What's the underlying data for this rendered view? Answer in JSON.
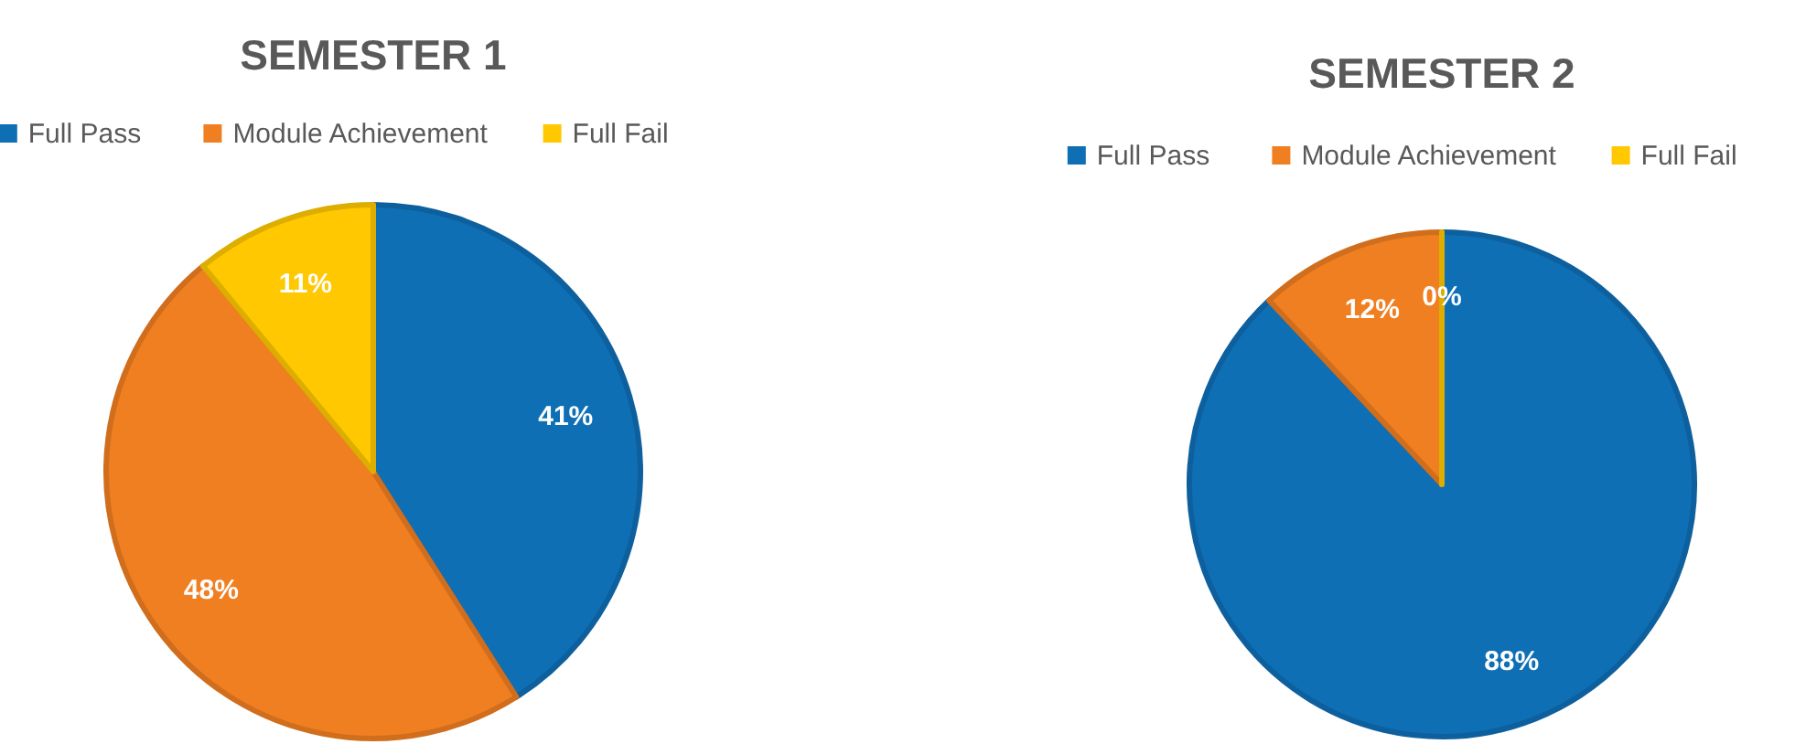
{
  "chart_data": [
    {
      "type": "pie",
      "title": "SEMESTER 1",
      "categories": [
        "Full Pass",
        "Module Achievement",
        "Full Fail"
      ],
      "values": [
        41,
        48,
        11
      ],
      "colors": [
        "#0f6fb5",
        "#f07f22",
        "#ffc800"
      ],
      "value_labels": [
        "41%",
        "48%",
        "11%"
      ],
      "legend": "top"
    },
    {
      "type": "pie",
      "title": "SEMESTER 2",
      "categories": [
        "Full Pass",
        "Module Achievement",
        "Full Fail"
      ],
      "values": [
        88,
        12,
        0
      ],
      "colors": [
        "#0f6fb5",
        "#f07f22",
        "#ffc800"
      ],
      "value_labels": [
        "88%",
        "12%",
        "0%"
      ],
      "legend": "top"
    }
  ]
}
